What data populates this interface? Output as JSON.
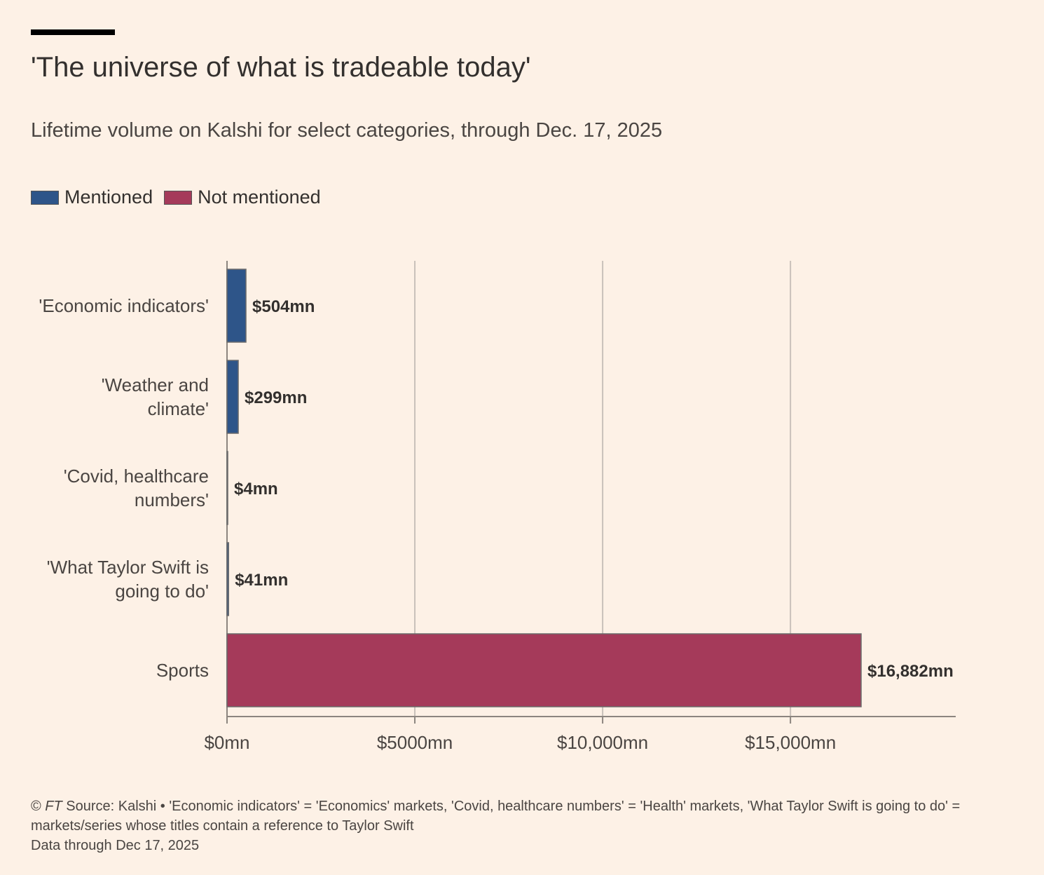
{
  "header": {
    "title": "'The universe of what is tradeable today'",
    "subtitle": "Lifetime volume on Kalshi for select categories, through Dec. 17, 2025"
  },
  "legend": [
    {
      "label": "Mentioned",
      "color": "#2e5589"
    },
    {
      "label": "Not mentioned",
      "color": "#a53a5a"
    }
  ],
  "chart_data": {
    "type": "bar",
    "orientation": "horizontal",
    "title": "'The universe of what is tradeable today'",
    "subtitle": "Lifetime volume on Kalshi for select categories, through Dec. 17, 2025",
    "xlabel": "",
    "ylabel": "",
    "xlim": [
      0,
      19400
    ],
    "x_ticks": [
      0,
      5000,
      10000,
      15000
    ],
    "x_tick_labels": [
      "$0mn",
      "$5000mn",
      "$10,000mn",
      "$15,000mn"
    ],
    "grid": true,
    "legend_position": "top-left",
    "categories": [
      {
        "label_lines": [
          "'Economic indicators'"
        ],
        "value": 504,
        "value_label": "$504mn",
        "group": "Mentioned"
      },
      {
        "label_lines": [
          "'Weather and",
          "climate'"
        ],
        "value": 299,
        "value_label": "$299mn",
        "group": "Mentioned"
      },
      {
        "label_lines": [
          "'Covid, healthcare",
          "numbers'"
        ],
        "value": 4,
        "value_label": "$4mn",
        "group": "Mentioned"
      },
      {
        "label_lines": [
          "'What Taylor Swift is",
          "going to do'"
        ],
        "value": 41,
        "value_label": "$41mn",
        "group": "Mentioned"
      },
      {
        "label_lines": [
          "Sports"
        ],
        "value": 16882,
        "value_label": "$16,882mn",
        "group": "Not mentioned"
      }
    ]
  },
  "footer": {
    "copyright": "© ",
    "ft": "FT",
    "source": " Source: Kalshi • 'Economic indicators' = 'Economics' markets, 'Covid, healthcare numbers' = 'Health' markets, 'What Taylor Swift is going to do' = markets/series whose titles contain a reference to Taylor Swift",
    "data_note": "Data through Dec 17, 2025"
  }
}
